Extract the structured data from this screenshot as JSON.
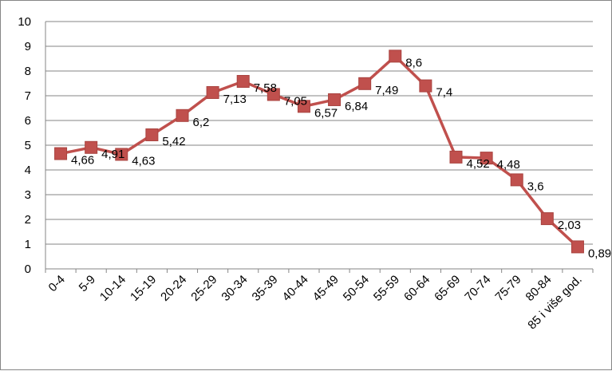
{
  "chart_data": {
    "type": "line",
    "title": "",
    "xlabel": "",
    "ylabel": "",
    "categories": [
      "0-4",
      "5-9",
      "10-14",
      "15-19",
      "20-24",
      "25-29",
      "30-34",
      "35-39",
      "40-44",
      "45-49",
      "50-54",
      "55-59",
      "60-64",
      "65-69",
      "70-74",
      "75-79",
      "80-84",
      "85 i više god."
    ],
    "values": [
      4.66,
      4.91,
      4.63,
      5.42,
      6.2,
      7.13,
      7.58,
      7.05,
      6.57,
      6.84,
      7.49,
      8.6,
      7.4,
      4.52,
      4.48,
      3.6,
      2.03,
      0.89
    ],
    "data_labels": [
      "4,66",
      "4,91",
      "4,63",
      "5,42",
      "6,2",
      "7,13",
      "7,58",
      "7,05",
      "6,57",
      "6,84",
      "7,49",
      "8,6",
      "7,4",
      "4,52",
      "4,48",
      "3,6",
      "2,03",
      "0,89"
    ],
    "ylim": [
      0,
      10
    ],
    "yticks": [
      "0",
      "1",
      "2",
      "3",
      "4",
      "5",
      "6",
      "7",
      "8",
      "9",
      "10"
    ],
    "grid": true,
    "legend": "none",
    "colors": {
      "series": "#c0504d",
      "grid": "#868686",
      "axis": "#868686"
    },
    "marker": "square"
  }
}
